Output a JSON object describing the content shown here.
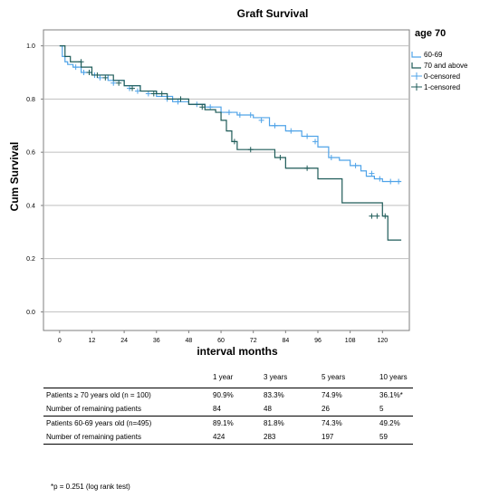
{
  "chart_data": {
    "type": "line",
    "title": "Graft Survival",
    "xlabel": "interval months",
    "ylabel": "Cum Survival",
    "xlim": [
      -6,
      130
    ],
    "ylim": [
      -0.07,
      1.06
    ],
    "x_ticks": [
      0,
      12,
      24,
      36,
      48,
      60,
      72,
      84,
      96,
      108,
      120
    ],
    "x_tick_labels": [
      "0",
      "12",
      "24",
      "36",
      "48",
      "60",
      "72",
      "84",
      "96",
      "108",
      "120"
    ],
    "y_ticks": [
      0.0,
      0.2,
      0.4,
      0.6,
      0.8,
      1.0
    ],
    "y_tick_labels": [
      "0.0",
      "0.2",
      "0.4",
      "0.6",
      "0.8",
      "1.0"
    ],
    "grid": "horizontal",
    "legend_title": "age 70",
    "legend_position": "top-right",
    "legend": [
      "60-69",
      "70 and above",
      "0-censored",
      "1-censored"
    ],
    "colors": {
      "g6069": "#4fa3e8",
      "g70": "#1e5b58",
      "grid": "#bfbfbf",
      "axis": "#7f7f7f"
    },
    "series": [
      {
        "name": "60-69",
        "color": "#4fa3e8",
        "x": [
          0,
          1,
          2,
          3,
          5,
          8,
          12,
          18,
          24,
          30,
          36,
          42,
          48,
          54,
          60,
          66,
          70,
          72,
          78,
          84,
          90,
          96,
          100,
          104,
          108,
          112,
          114,
          117,
          120,
          124,
          127
        ],
        "y": [
          1.0,
          0.96,
          0.94,
          0.93,
          0.92,
          0.9,
          0.89,
          0.87,
          0.85,
          0.83,
          0.81,
          0.79,
          0.78,
          0.77,
          0.75,
          0.74,
          0.74,
          0.73,
          0.7,
          0.68,
          0.66,
          0.62,
          0.58,
          0.57,
          0.55,
          0.53,
          0.51,
          0.5,
          0.49,
          0.49,
          0.49
        ],
        "censor_x": [
          6,
          9,
          13,
          15,
          20,
          26,
          29,
          33,
          40,
          44,
          51,
          56,
          63,
          67,
          71,
          75,
          80,
          86,
          92,
          95,
          101,
          110,
          116,
          119,
          123,
          126
        ],
        "censor_y": [
          0.92,
          0.9,
          0.89,
          0.88,
          0.86,
          0.84,
          0.83,
          0.82,
          0.8,
          0.79,
          0.78,
          0.77,
          0.75,
          0.74,
          0.74,
          0.72,
          0.7,
          0.68,
          0.66,
          0.64,
          0.58,
          0.55,
          0.52,
          0.5,
          0.49,
          0.49
        ]
      },
      {
        "name": "70 and above",
        "color": "#1e5b58",
        "x": [
          0,
          2,
          4,
          8,
          12,
          20,
          24,
          30,
          36,
          40,
          48,
          54,
          58,
          60,
          62,
          64,
          66,
          72,
          80,
          84,
          96,
          104,
          105,
          114,
          120,
          122,
          127
        ],
        "y": [
          1.0,
          0.96,
          0.94,
          0.92,
          0.89,
          0.87,
          0.85,
          0.83,
          0.82,
          0.8,
          0.78,
          0.76,
          0.75,
          0.72,
          0.68,
          0.64,
          0.61,
          0.61,
          0.58,
          0.54,
          0.5,
          0.5,
          0.41,
          0.41,
          0.36,
          0.27,
          0.27
        ],
        "censor_x": [
          8,
          11,
          14,
          17,
          22,
          27,
          35,
          38,
          45,
          53,
          65,
          71,
          82,
          92,
          116,
          118,
          121
        ],
        "censor_y": [
          0.94,
          0.9,
          0.89,
          0.88,
          0.86,
          0.84,
          0.82,
          0.82,
          0.8,
          0.77,
          0.64,
          0.61,
          0.58,
          0.54,
          0.36,
          0.36,
          0.36
        ]
      }
    ]
  },
  "table": {
    "headers": [
      "",
      "1 year",
      "3 years",
      "5 years",
      "10 years"
    ],
    "rows": [
      [
        "Patients ≥  70 years old (n = 100)",
        "90.9%",
        "83.3%",
        "74.9%",
        "36.1%*"
      ],
      [
        "Number of remaining patients",
        "84",
        "48",
        "26",
        "5"
      ],
      [
        "Patients 60-69 years old (n=495)",
        "89.1%",
        "81.8%",
        "74.3%",
        "49.2%"
      ],
      [
        "Number of remaining patients",
        "424",
        "283",
        "197",
        "59"
      ]
    ]
  },
  "footnote": "*p = 0.251 (log rank test)"
}
